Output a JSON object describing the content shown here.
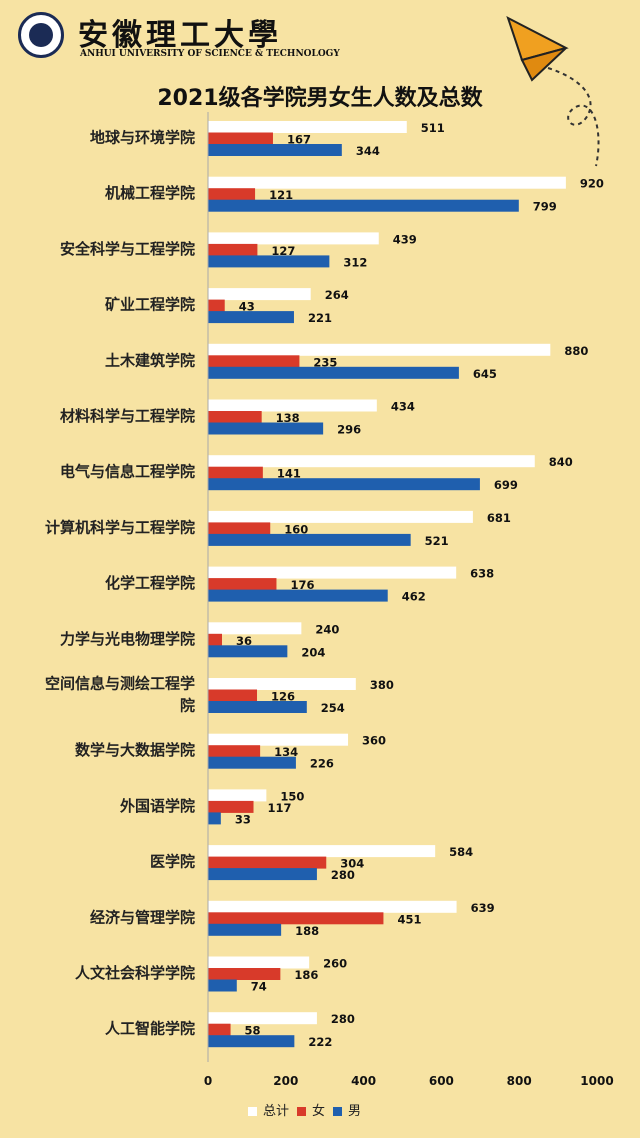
{
  "header": {
    "school_name_cn": "安徽理工大學",
    "school_name_en": "ANHUI UNIVERSITY OF SCIENCE & TECHNOLOGY"
  },
  "colors": {
    "background": "#f7e3a3",
    "total": "#ffffff",
    "female": "#d83a2a",
    "male": "#1f5fae"
  },
  "chart_data": {
    "type": "bar",
    "orientation": "horizontal",
    "title": "2021级各学院男女生人数及总数",
    "categories": [
      "地球与环境学院",
      "机械工程学院",
      "安全科学与工程学院",
      "矿业工程学院",
      "土木建筑学院",
      "材料科学与工程学院",
      "电气与信息工程学院",
      "计算机科学与工程学院",
      "化学工程学院",
      "力学与光电物理学院",
      "空间信息与测绘工程学院",
      "数学与大数据学院",
      "外国语学院",
      "医学院",
      "经济与管理学院",
      "人文社会科学学院",
      "人工智能学院"
    ],
    "series": [
      {
        "name": "总计",
        "color": "#ffffff",
        "values": [
          511,
          920,
          439,
          264,
          880,
          434,
          840,
          681,
          638,
          240,
          380,
          360,
          150,
          584,
          639,
          260,
          280
        ]
      },
      {
        "name": "女",
        "color": "#d83a2a",
        "values": [
          167,
          121,
          127,
          43,
          235,
          138,
          141,
          160,
          176,
          36,
          126,
          134,
          117,
          304,
          451,
          186,
          58
        ]
      },
      {
        "name": "男",
        "color": "#1f5fae",
        "values": [
          344,
          799,
          312,
          221,
          645,
          296,
          699,
          521,
          462,
          204,
          254,
          226,
          33,
          280,
          188,
          74,
          222
        ]
      }
    ],
    "xlim": [
      0,
      1000
    ],
    "xticks": [
      0,
      200,
      400,
      600,
      800,
      1000
    ],
    "xlabel": "",
    "ylabel": "",
    "legend_position": "bottom",
    "grid": false
  }
}
